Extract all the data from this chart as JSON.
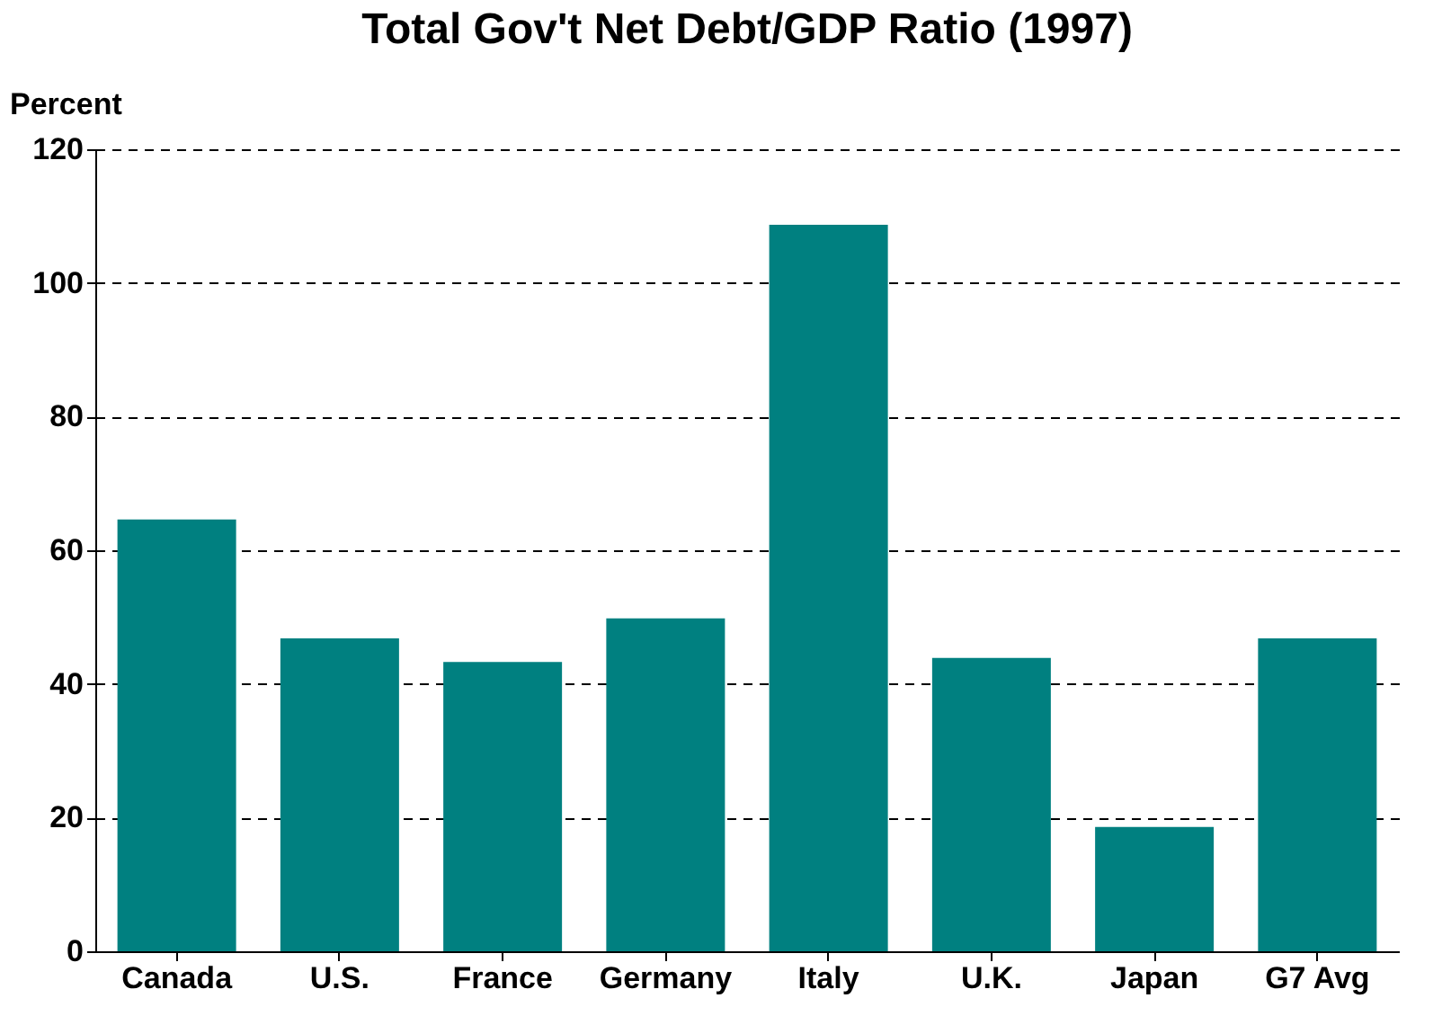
{
  "chart_data": {
    "type": "bar",
    "title": "Total Gov't Net Debt/GDP Ratio (1997)",
    "ylabel": "Percent",
    "categories": [
      "Canada",
      "U.S.",
      "France",
      "Germany",
      "Italy",
      "U.K.",
      "Japan",
      "G7 Avg"
    ],
    "values": [
      64.6,
      46.8,
      43.3,
      49.8,
      108.7,
      43.9,
      18.6,
      46.8
    ],
    "color": "#008080",
    "ylim": [
      0,
      120
    ],
    "yticks": [
      0,
      20,
      40,
      60,
      80,
      100,
      120
    ],
    "grid": "y"
  }
}
